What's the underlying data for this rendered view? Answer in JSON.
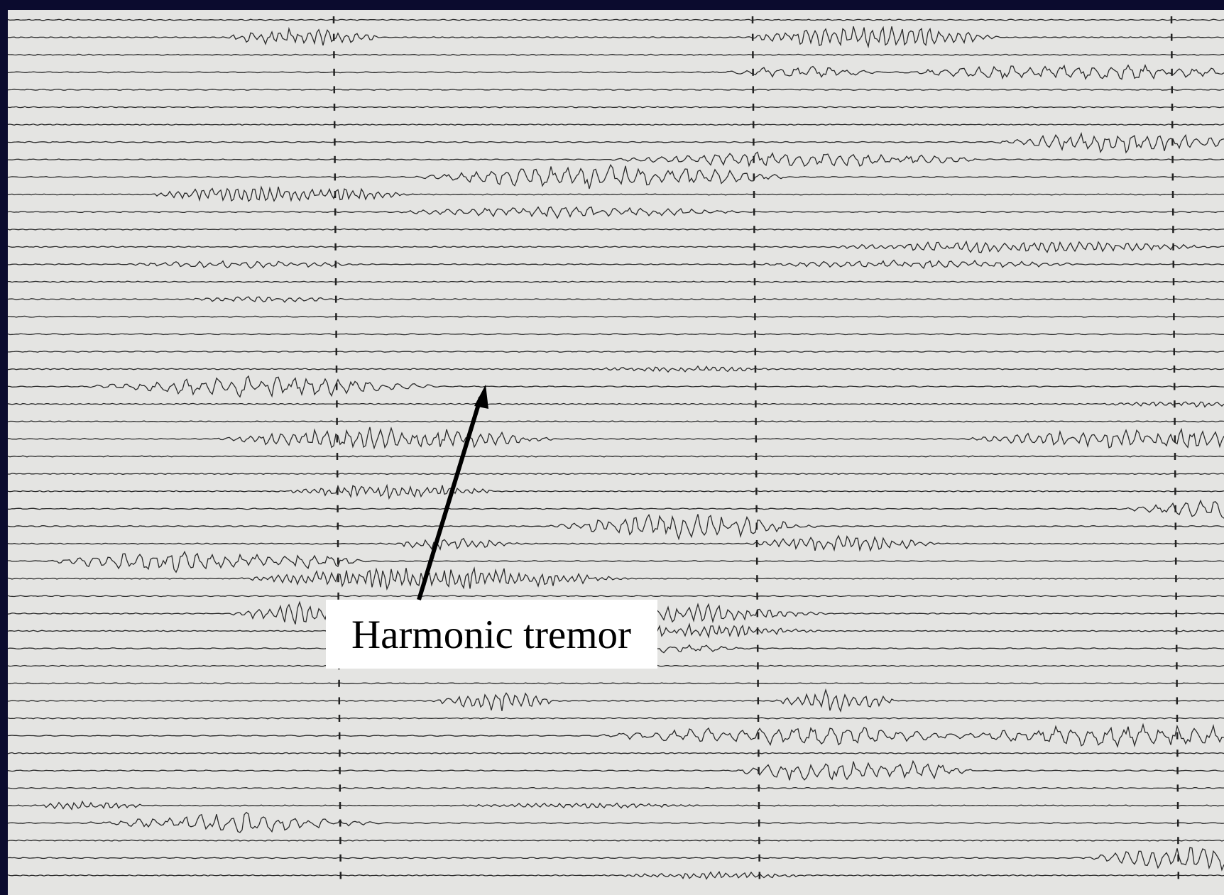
{
  "annotation": {
    "label": "Harmonic tremor"
  }
}
